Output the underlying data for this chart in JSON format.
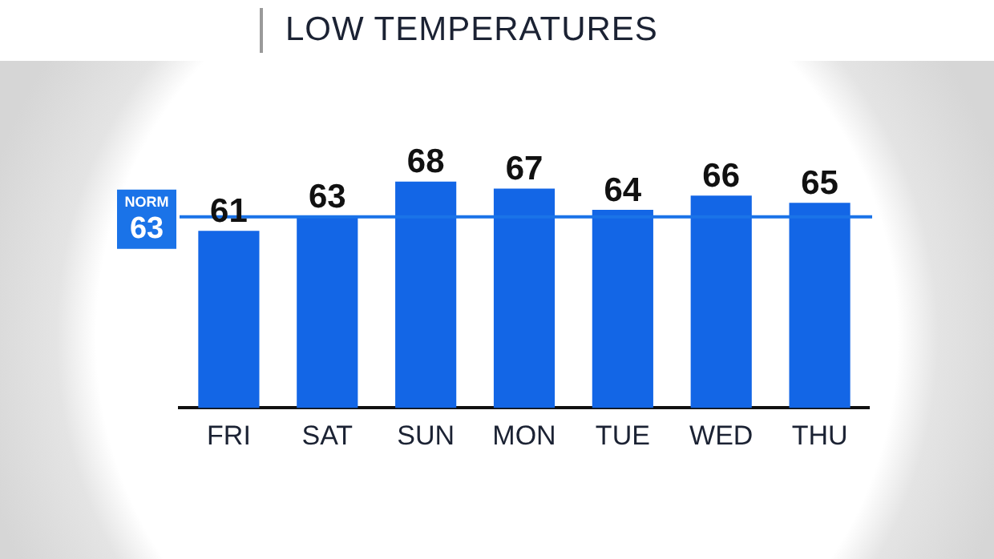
{
  "chart_data": {
    "type": "bar",
    "title": "LOW TEMPERATURES",
    "categories": [
      "FRI",
      "SAT",
      "SUN",
      "MON",
      "TUE",
      "WED",
      "THU"
    ],
    "values": [
      61,
      63,
      68,
      67,
      64,
      66,
      65
    ],
    "color": "#1366e6",
    "data_labels": true,
    "grid": false,
    "legend": false,
    "ref_lines": [
      {
        "axis": "y",
        "value": 63,
        "label": "NORM 63",
        "color": "#1a73e8"
      }
    ]
  }
}
